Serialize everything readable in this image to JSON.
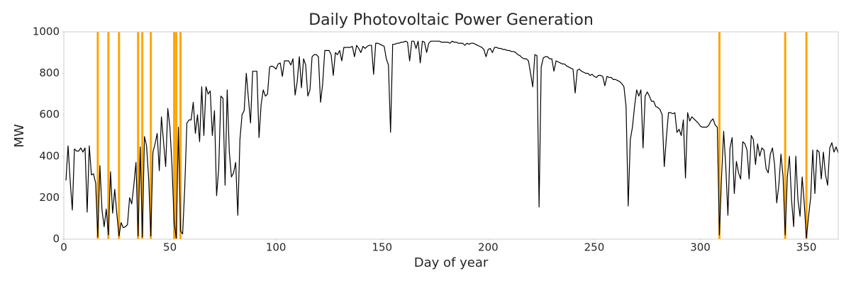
{
  "chart_data": {
    "type": "line",
    "title": "Daily Photovoltaic Power Generation",
    "x_label": "Day of year",
    "y_label": "MW",
    "xlim": [
      0,
      365
    ],
    "ylim": [
      0,
      1000
    ],
    "xticks": [
      0,
      50,
      100,
      150,
      200,
      250,
      300,
      350
    ],
    "yticks": [
      0,
      200,
      400,
      600,
      800,
      1000
    ],
    "grid": false,
    "color": "#000000",
    "x": [
      1,
      2,
      3,
      4,
      5,
      6,
      7,
      8,
      9,
      10,
      11,
      12,
      13,
      14,
      15,
      16,
      17,
      18,
      19,
      20,
      21,
      22,
      23,
      24,
      25,
      26,
      27,
      28,
      29,
      30,
      31,
      32,
      33,
      34,
      35,
      36,
      37,
      38,
      39,
      40,
      41,
      42,
      43,
      44,
      45,
      46,
      47,
      48,
      49,
      50,
      51,
      52,
      53,
      54,
      55,
      56,
      57,
      58,
      59,
      60,
      61,
      62,
      63,
      64,
      65,
      66,
      67,
      68,
      69,
      70,
      71,
      72,
      73,
      74,
      75,
      76,
      77,
      78,
      79,
      80,
      81,
      82,
      83,
      84,
      85,
      86,
      87,
      88,
      89,
      90,
      91,
      92,
      93,
      94,
      95,
      96,
      97,
      98,
      99,
      100,
      101,
      102,
      103,
      104,
      105,
      106,
      107,
      108,
      109,
      110,
      111,
      112,
      113,
      114,
      115,
      116,
      117,
      118,
      119,
      120,
      121,
      122,
      123,
      124,
      125,
      126,
      127,
      128,
      129,
      130,
      131,
      132,
      133,
      134,
      135,
      136,
      137,
      138,
      139,
      140,
      141,
      142,
      143,
      144,
      145,
      146,
      147,
      148,
      149,
      150,
      151,
      152,
      153,
      154,
      155,
      156,
      157,
      158,
      159,
      160,
      161,
      162,
      163,
      164,
      165,
      166,
      167,
      168,
      169,
      170,
      171,
      172,
      173,
      174,
      175,
      176,
      177,
      178,
      179,
      180,
      181,
      182,
      183,
      184,
      185,
      186,
      187,
      188,
      189,
      190,
      191,
      192,
      193,
      194,
      195,
      196,
      197,
      198,
      199,
      200,
      201,
      202,
      203,
      204,
      205,
      206,
      207,
      208,
      209,
      210,
      211,
      212,
      213,
      214,
      215,
      216,
      217,
      218,
      219,
      220,
      221,
      222,
      223,
      224,
      225,
      226,
      227,
      228,
      229,
      230,
      231,
      232,
      233,
      234,
      235,
      236,
      237,
      238,
      239,
      240,
      241,
      242,
      243,
      244,
      245,
      246,
      247,
      248,
      249,
      250,
      251,
      252,
      253,
      254,
      255,
      256,
      257,
      258,
      259,
      260,
      261,
      262,
      263,
      264,
      265,
      266,
      267,
      268,
      269,
      270,
      271,
      272,
      273,
      274,
      275,
      276,
      277,
      278,
      279,
      280,
      281,
      282,
      283,
      284,
      285,
      286,
      287,
      288,
      289,
      290,
      291,
      292,
      293,
      294,
      295,
      296,
      297,
      298,
      299,
      300,
      301,
      302,
      303,
      304,
      305,
      306,
      307,
      308,
      309,
      310,
      311,
      312,
      313,
      314,
      315,
      316,
      317,
      318,
      319,
      320,
      321,
      322,
      323,
      324,
      325,
      326,
      327,
      328,
      329,
      330,
      331,
      332,
      333,
      334,
      335,
      336,
      337,
      338,
      339,
      340,
      341,
      342,
      343,
      344,
      345,
      346,
      347,
      348,
      349,
      350,
      351,
      352,
      353,
      354,
      355,
      356,
      357,
      358,
      359,
      360,
      361,
      362,
      363,
      364,
      365
    ],
    "values": [
      283,
      450,
      280,
      140,
      435,
      425,
      425,
      440,
      420,
      440,
      130,
      450,
      310,
      315,
      270,
      10,
      355,
      140,
      60,
      145,
      20,
      325,
      125,
      240,
      120,
      15,
      80,
      55,
      60,
      70,
      200,
      170,
      260,
      370,
      15,
      445,
      10,
      495,
      450,
      290,
      15,
      420,
      460,
      510,
      330,
      590,
      470,
      350,
      630,
      540,
      350,
      80,
      5,
      540,
      40,
      25,
      250,
      560,
      575,
      575,
      660,
      510,
      600,
      470,
      735,
      500,
      735,
      700,
      715,
      500,
      620,
      210,
      340,
      690,
      680,
      260,
      720,
      420,
      300,
      320,
      370,
      115,
      480,
      600,
      620,
      800,
      680,
      560,
      810,
      810,
      810,
      490,
      650,
      720,
      690,
      700,
      830,
      835,
      830,
      820,
      845,
      850,
      785,
      860,
      860,
      860,
      840,
      870,
      695,
      760,
      880,
      730,
      870,
      840,
      690,
      720,
      880,
      890,
      890,
      880,
      660,
      750,
      910,
      910,
      910,
      890,
      790,
      900,
      890,
      910,
      860,
      925,
      925,
      925,
      925,
      930,
      880,
      935,
      920,
      900,
      930,
      920,
      930,
      935,
      935,
      795,
      945,
      945,
      940,
      935,
      930,
      870,
      840,
      515,
      940,
      940,
      945,
      945,
      950,
      950,
      955,
      950,
      860,
      955,
      955,
      920,
      955,
      850,
      955,
      950,
      900,
      945,
      955,
      955,
      955,
      955,
      955,
      950,
      950,
      950,
      950,
      945,
      955,
      950,
      950,
      945,
      945,
      945,
      935,
      945,
      940,
      945,
      945,
      940,
      935,
      930,
      925,
      915,
      880,
      915,
      920,
      900,
      925,
      925,
      920,
      920,
      915,
      915,
      910,
      910,
      905,
      905,
      900,
      890,
      885,
      875,
      870,
      870,
      860,
      800,
      735,
      890,
      885,
      155,
      830,
      875,
      880,
      880,
      870,
      870,
      810,
      860,
      855,
      850,
      845,
      845,
      835,
      830,
      825,
      820,
      705,
      815,
      820,
      810,
      805,
      800,
      800,
      790,
      795,
      785,
      780,
      790,
      790,
      785,
      740,
      785,
      780,
      780,
      770,
      770,
      765,
      760,
      750,
      735,
      640,
      160,
      480,
      540,
      640,
      720,
      690,
      720,
      440,
      690,
      710,
      690,
      665,
      665,
      640,
      635,
      625,
      600,
      350,
      490,
      610,
      610,
      605,
      610,
      515,
      530,
      500,
      575,
      295,
      610,
      570,
      590,
      580,
      570,
      560,
      545,
      540,
      540,
      540,
      550,
      570,
      580,
      550,
      540,
      20,
      300,
      520,
      350,
      115,
      440,
      490,
      220,
      375,
      320,
      290,
      470,
      460,
      430,
      290,
      500,
      480,
      360,
      460,
      400,
      440,
      430,
      340,
      320,
      410,
      440,
      360,
      175,
      260,
      410,
      300,
      20,
      300,
      400,
      190,
      60,
      400,
      190,
      110,
      300,
      170,
      5,
      110,
      200,
      430,
      220,
      430,
      420,
      290,
      420,
      310,
      260,
      440,
      465,
      420,
      445,
      415
    ],
    "vlines": {
      "color": "#ffa500",
      "x": [
        16,
        21,
        26,
        35,
        37,
        41,
        52,
        53,
        55,
        309,
        340,
        350
      ]
    }
  }
}
